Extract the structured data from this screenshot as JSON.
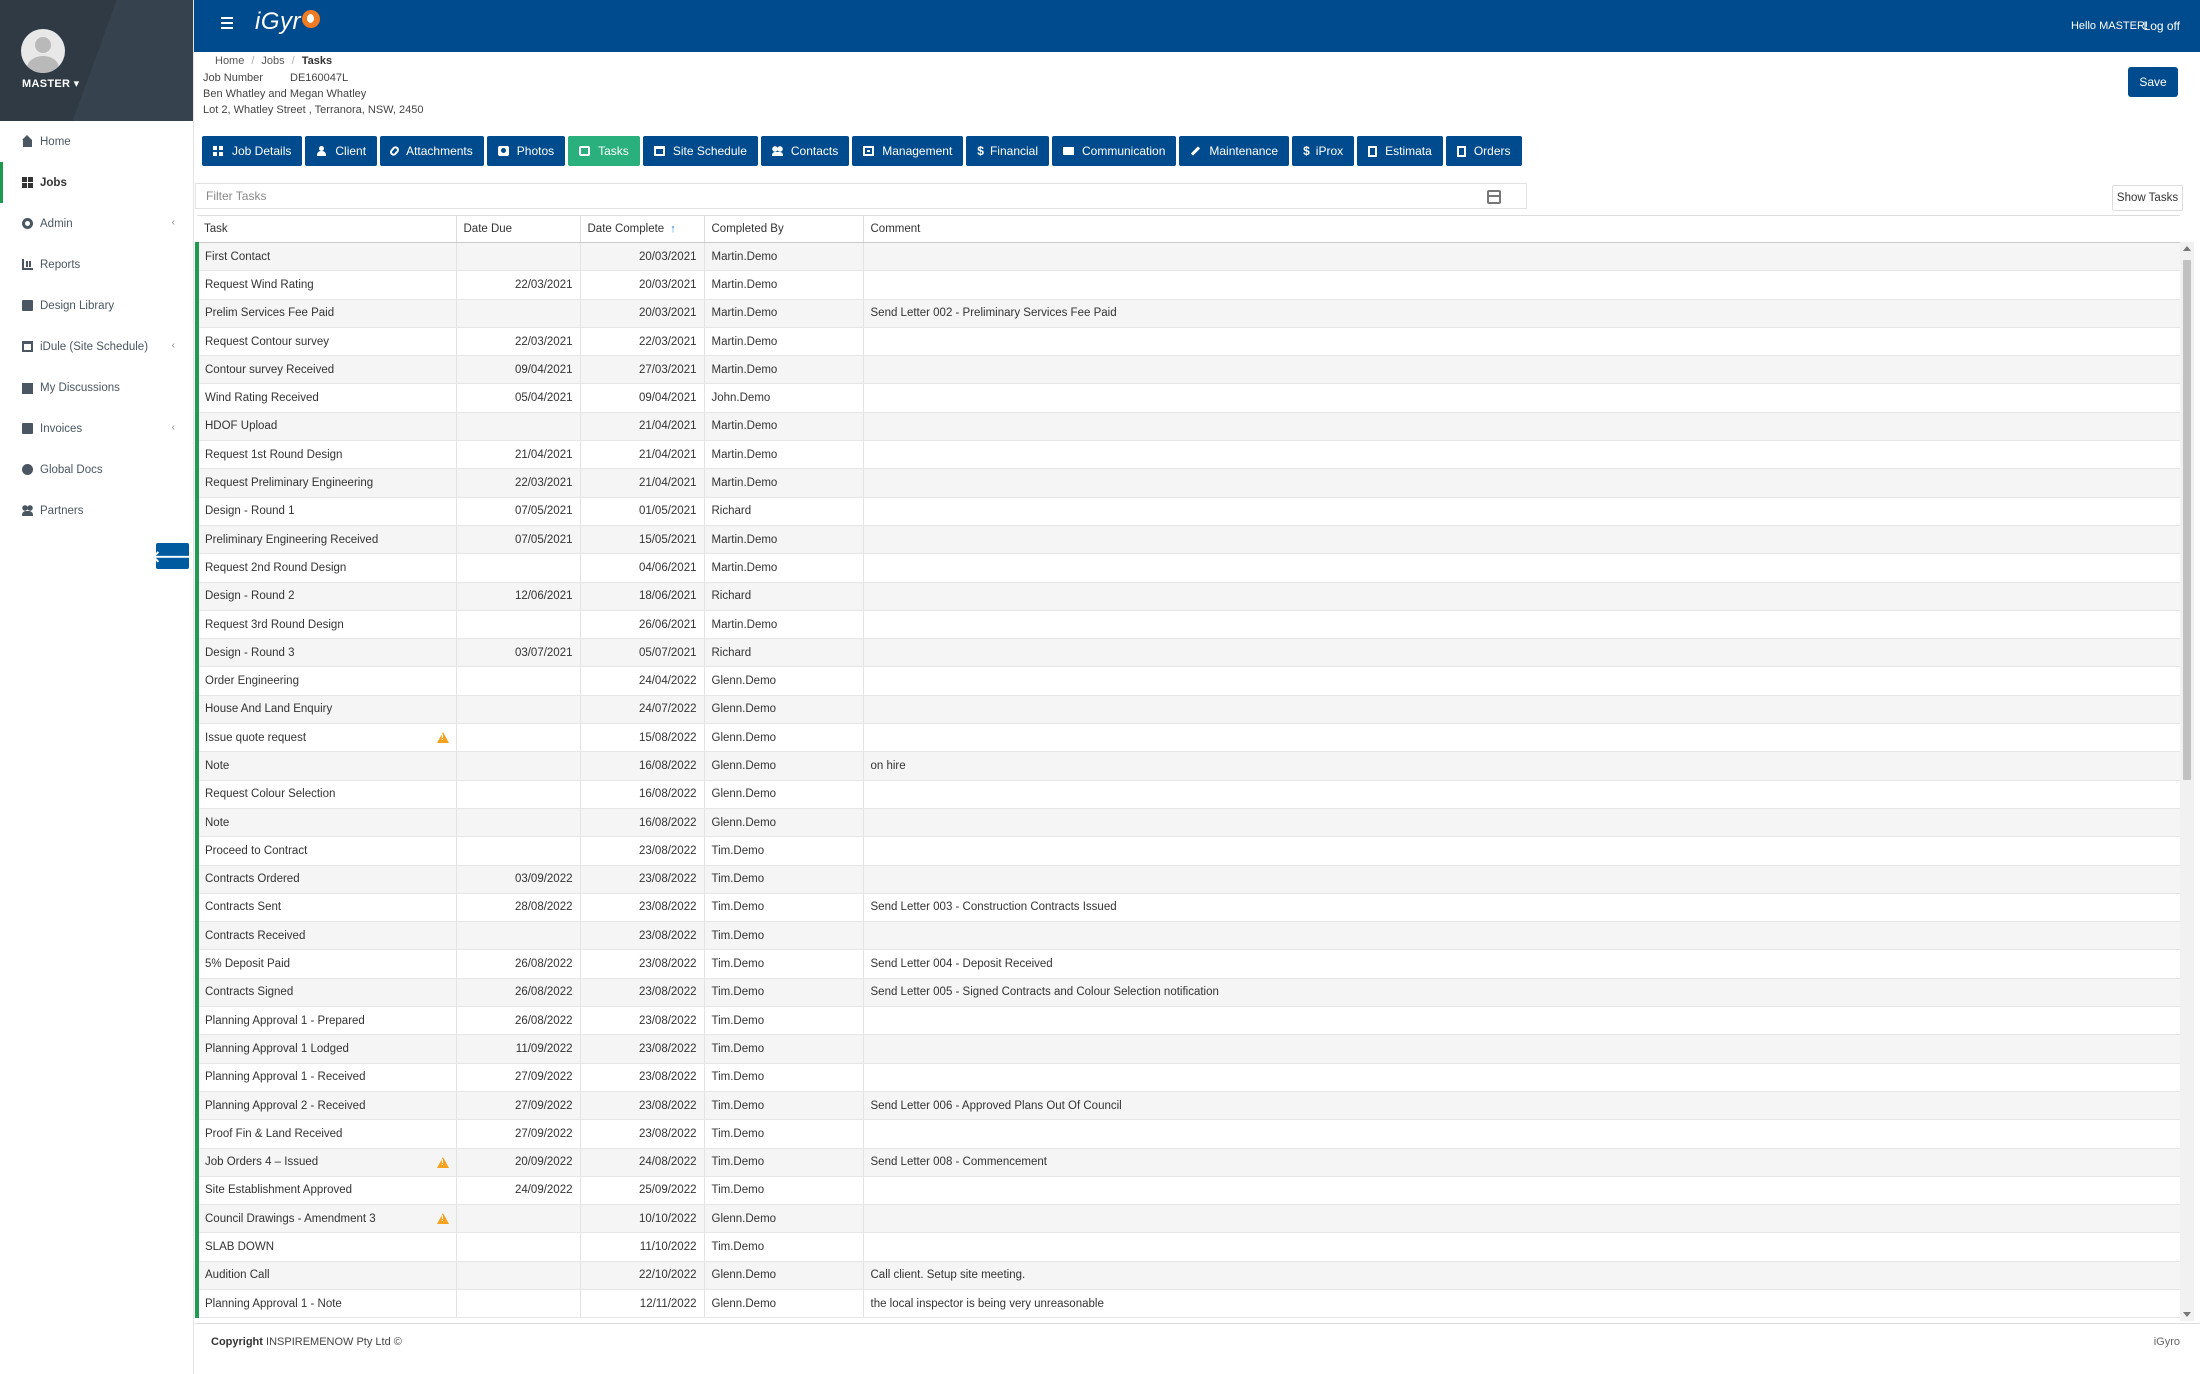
{
  "app": {
    "brand": "iGyr",
    "brand_tail": "o"
  },
  "user": {
    "name": "MASTER",
    "greeting": "Hello MASTER!",
    "logoff": "Log off"
  },
  "sidebar": {
    "items": [
      {
        "label": "Home",
        "icon": "home-icon"
      },
      {
        "label": "Jobs",
        "icon": "grid-icon",
        "active": true
      },
      {
        "label": "Admin",
        "icon": "gear-icon",
        "has_children": true
      },
      {
        "label": "Reports",
        "icon": "bar-chart-icon"
      },
      {
        "label": "Design Library",
        "icon": "book-icon"
      },
      {
        "label": "iDule (Site Schedule)",
        "icon": "calendar-icon",
        "has_children": true
      },
      {
        "label": "My Discussions",
        "icon": "envelope-icon"
      },
      {
        "label": "Invoices",
        "icon": "folder-icon",
        "has_children": true
      },
      {
        "label": "Global Docs",
        "icon": "globe-icon"
      },
      {
        "label": "Partners",
        "icon": "users-icon"
      }
    ],
    "collapse_icon": "arrow-left-icon"
  },
  "breadcrumb": [
    "Home",
    "Jobs",
    "Tasks"
  ],
  "job": {
    "number_label": "Job Number",
    "number": "DE160047L",
    "clients": "Ben Whatley and Megan Whatley",
    "address": "Lot 2, Whatley Street , Terranora, NSW, 2450"
  },
  "save_label": "Save",
  "tabs": [
    {
      "label": "Job Details",
      "icon": "grid-icon"
    },
    {
      "label": "Client",
      "icon": "user-icon"
    },
    {
      "label": "Attachments",
      "icon": "paperclip-icon"
    },
    {
      "label": "Photos",
      "icon": "camera-icon"
    },
    {
      "label": "Tasks",
      "icon": "check-square-icon",
      "active": true
    },
    {
      "label": "Site Schedule",
      "icon": "calendar-icon"
    },
    {
      "label": "Contacts",
      "icon": "users-icon"
    },
    {
      "label": "Management",
      "icon": "box-icon"
    },
    {
      "label": "Financial",
      "icon": "dollar-icon"
    },
    {
      "label": "Communication",
      "icon": "envelope-icon"
    },
    {
      "label": "Maintenance",
      "icon": "wrench-icon"
    },
    {
      "label": "iProx",
      "icon": "dollar-icon"
    },
    {
      "label": "Estimata",
      "icon": "file-icon"
    },
    {
      "label": "Orders",
      "icon": "file-icon"
    }
  ],
  "filter": {
    "placeholder": "Filter Tasks",
    "show_tasks": "Show Tasks"
  },
  "table": {
    "columns": [
      "Task",
      "Date Due",
      "Date Complete",
      "Completed By",
      "Comment"
    ],
    "sorted_column": "Date Complete",
    "rows": [
      {
        "task": "First Contact",
        "due": "",
        "complete": "20/03/2021",
        "by": "Martin.Demo",
        "comment": ""
      },
      {
        "task": "Request Wind Rating",
        "due": "22/03/2021",
        "complete": "20/03/2021",
        "by": "Martin.Demo",
        "comment": ""
      },
      {
        "task": "Prelim Services Fee Paid",
        "due": "",
        "complete": "20/03/2021",
        "by": "Martin.Demo",
        "comment": "Send Letter 002 - Preliminary Services Fee Paid"
      },
      {
        "task": "Request Contour survey",
        "due": "22/03/2021",
        "complete": "22/03/2021",
        "by": "Martin.Demo",
        "comment": ""
      },
      {
        "task": "Contour survey Received",
        "due": "09/04/2021",
        "complete": "27/03/2021",
        "by": "Martin.Demo",
        "comment": ""
      },
      {
        "task": "Wind Rating Received",
        "due": "05/04/2021",
        "complete": "09/04/2021",
        "by": "John.Demo",
        "comment": ""
      },
      {
        "task": "HDOF Upload",
        "due": "",
        "complete": "21/04/2021",
        "by": "Martin.Demo",
        "comment": ""
      },
      {
        "task": "Request 1st Round Design",
        "due": "21/04/2021",
        "complete": "21/04/2021",
        "by": "Martin.Demo",
        "comment": ""
      },
      {
        "task": "Request Preliminary Engineering",
        "due": "22/03/2021",
        "complete": "21/04/2021",
        "by": "Martin.Demo",
        "comment": ""
      },
      {
        "task": "Design - Round 1",
        "due": "07/05/2021",
        "complete": "01/05/2021",
        "by": "Richard",
        "comment": ""
      },
      {
        "task": "Preliminary Engineering Received",
        "due": "07/05/2021",
        "complete": "15/05/2021",
        "by": "Martin.Demo",
        "comment": ""
      },
      {
        "task": "Request 2nd Round Design",
        "due": "",
        "complete": "04/06/2021",
        "by": "Martin.Demo",
        "comment": ""
      },
      {
        "task": "Design - Round 2",
        "due": "12/06/2021",
        "complete": "18/06/2021",
        "by": "Richard",
        "comment": ""
      },
      {
        "task": "Request 3rd Round Design",
        "due": "",
        "complete": "26/06/2021",
        "by": "Martin.Demo",
        "comment": ""
      },
      {
        "task": "Design - Round 3",
        "due": "03/07/2021",
        "complete": "05/07/2021",
        "by": "Richard",
        "comment": ""
      },
      {
        "task": "Order Engineering",
        "due": "",
        "complete": "24/04/2022",
        "by": "Glenn.Demo",
        "comment": ""
      },
      {
        "task": "House And Land Enquiry",
        "due": "",
        "complete": "24/07/2022",
        "by": "Glenn.Demo",
        "comment": ""
      },
      {
        "task": "Issue quote request",
        "due": "",
        "complete": "15/08/2022",
        "by": "Glenn.Demo",
        "comment": "",
        "warning": true
      },
      {
        "task": "Note",
        "due": "",
        "complete": "16/08/2022",
        "by": "Glenn.Demo",
        "comment": "on hire"
      },
      {
        "task": "Request Colour Selection",
        "due": "",
        "complete": "16/08/2022",
        "by": "Glenn.Demo",
        "comment": ""
      },
      {
        "task": "Note",
        "due": "",
        "complete": "16/08/2022",
        "by": "Glenn.Demo",
        "comment": ""
      },
      {
        "task": "Proceed to Contract",
        "due": "",
        "complete": "23/08/2022",
        "by": "Tim.Demo",
        "comment": ""
      },
      {
        "task": "Contracts Ordered",
        "due": "03/09/2022",
        "complete": "23/08/2022",
        "by": "Tim.Demo",
        "comment": ""
      },
      {
        "task": "Contracts Sent",
        "due": "28/08/2022",
        "complete": "23/08/2022",
        "by": "Tim.Demo",
        "comment": "Send Letter 003 - Construction Contracts Issued"
      },
      {
        "task": "Contracts Received",
        "due": "",
        "complete": "23/08/2022",
        "by": "Tim.Demo",
        "comment": ""
      },
      {
        "task": "5% Deposit Paid",
        "due": "26/08/2022",
        "complete": "23/08/2022",
        "by": "Tim.Demo",
        "comment": "Send Letter 004 - Deposit Received"
      },
      {
        "task": "Contracts Signed",
        "due": "26/08/2022",
        "complete": "23/08/2022",
        "by": "Tim.Demo",
        "comment": "Send Letter 005 - Signed Contracts and Colour Selection notification"
      },
      {
        "task": "Planning Approval 1 - Prepared",
        "due": "26/08/2022",
        "complete": "23/08/2022",
        "by": "Tim.Demo",
        "comment": ""
      },
      {
        "task": "Planning Approval 1 Lodged",
        "due": "11/09/2022",
        "complete": "23/08/2022",
        "by": "Tim.Demo",
        "comment": ""
      },
      {
        "task": "Planning Approval 1 - Received",
        "due": "27/09/2022",
        "complete": "23/08/2022",
        "by": "Tim.Demo",
        "comment": ""
      },
      {
        "task": "Planning Approval 2 - Received",
        "due": "27/09/2022",
        "complete": "23/08/2022",
        "by": "Tim.Demo",
        "comment": "Send Letter 006 - Approved Plans Out Of Council"
      },
      {
        "task": "Proof Fin & Land Received",
        "due": "27/09/2022",
        "complete": "23/08/2022",
        "by": "Tim.Demo",
        "comment": ""
      },
      {
        "task": "Job Orders 4 – Issued",
        "due": "20/09/2022",
        "complete": "24/08/2022",
        "by": "Tim.Demo",
        "comment": "Send Letter 008 - Commencement",
        "warning": true
      },
      {
        "task": "Site Establishment Approved",
        "due": "24/09/2022",
        "complete": "25/09/2022",
        "by": "Tim.Demo",
        "comment": ""
      },
      {
        "task": "Council Drawings - Amendment 3",
        "due": "",
        "complete": "10/10/2022",
        "by": "Glenn.Demo",
        "comment": "",
        "warning": true
      },
      {
        "task": "SLAB DOWN",
        "due": "",
        "complete": "11/10/2022",
        "by": "Tim.Demo",
        "comment": ""
      },
      {
        "task": "Audition Call",
        "due": "",
        "complete": "22/10/2022",
        "by": "Glenn.Demo",
        "comment": "Call client. Setup site meeting."
      },
      {
        "task": "Planning Approval 1 - Note",
        "due": "",
        "complete": "12/11/2022",
        "by": "Glenn.Demo",
        "comment": "the local inspector is being very unreasonable"
      }
    ]
  },
  "footer": {
    "copyright_label": "Copyright",
    "copyright_text": "INSPIREMENOW Pty Ltd ©",
    "brand": "iGyro"
  },
  "colors": {
    "header": "#004b8d",
    "active_tab": "#29b07c",
    "row_accent": "#1f9c4f",
    "warning": "#f4a11e"
  }
}
